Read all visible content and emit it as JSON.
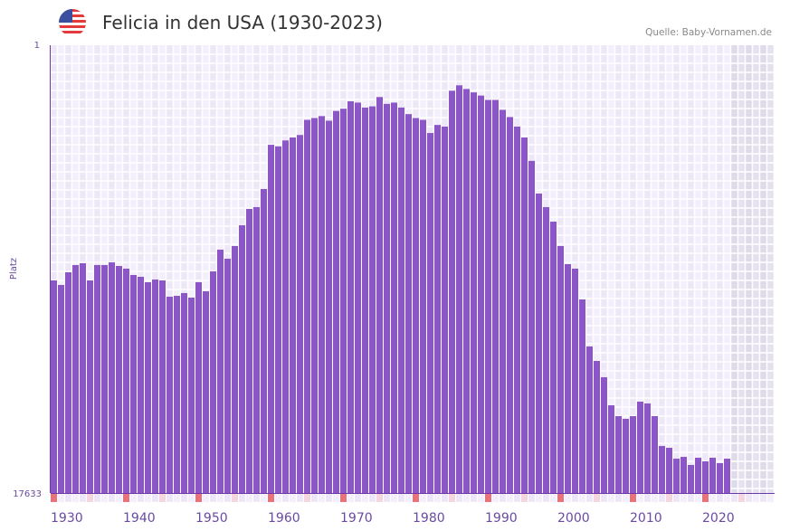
{
  "header": {
    "title": "Felicia in den USA (1930-2023)",
    "source": "Quelle: Baby-Vornamen.de",
    "flag_icon": "us-flag-icon"
  },
  "colors": {
    "bar": "#8c55c8",
    "axis": "#6a3aa8",
    "decade_marker": "#e8737a",
    "half_decade_marker": "#f5d6e0",
    "future_shade": "#e2dfec"
  },
  "chart_data": {
    "type": "bar",
    "title": "Felicia in den USA (1930-2023)",
    "xlabel": "",
    "ylabel": "Platz",
    "y_scale": "log",
    "y_inverted": true,
    "ylim": [
      1,
      17633
    ],
    "y_tick_labels": [
      "1",
      "17633"
    ],
    "xlim": [
      1930,
      2030
    ],
    "x_tick_labels": [
      "1930",
      "1940",
      "1950",
      "1960",
      "1970",
      "1980",
      "1990",
      "2000",
      "2010",
      "2020"
    ],
    "grid": true,
    "x": [
      1930,
      1931,
      1932,
      1933,
      1934,
      1935,
      1936,
      1937,
      1938,
      1939,
      1940,
      1941,
      1942,
      1943,
      1944,
      1945,
      1946,
      1947,
      1948,
      1949,
      1950,
      1951,
      1952,
      1953,
      1954,
      1955,
      1956,
      1957,
      1958,
      1959,
      1960,
      1961,
      1962,
      1963,
      1964,
      1965,
      1966,
      1967,
      1968,
      1969,
      1970,
      1971,
      1972,
      1973,
      1974,
      1975,
      1976,
      1977,
      1978,
      1979,
      1980,
      1981,
      1982,
      1983,
      1984,
      1985,
      1986,
      1987,
      1988,
      1989,
      1990,
      1991,
      1992,
      1993,
      1994,
      1995,
      1996,
      1997,
      1998,
      1999,
      2000,
      2001,
      2002,
      2003,
      2004,
      2005,
      2006,
      2007,
      2008,
      2009,
      2010,
      2011,
      2012,
      2013,
      2014,
      2015,
      2016,
      2017,
      2018,
      2019,
      2020,
      2021,
      2022,
      2023
    ],
    "values": [
      170,
      187.7,
      142.3,
      121.5,
      116.8,
      170,
      121.5,
      121.5,
      114.6,
      124,
      131.5,
      151,
      157.1,
      176.8,
      166.7,
      170,
      242.5,
      237.9,
      224.1,
      247.4,
      176.8,
      215.5,
      139.5,
      86.8,
      105.8,
      80.2,
      51,
      35.7,
      34.3,
      23.1,
      8.8,
      9.1,
      8,
      7.5,
      7.1,
      5.1,
      4.9,
      4.7,
      5.2,
      4.2,
      4,
      3.4,
      3.5,
      3.9,
      3.8,
      3.1,
      3.6,
      3.5,
      3.9,
      4.5,
      4.9,
      5.1,
      6.8,
      5.7,
      5.9,
      2.7,
      2.4,
      2.6,
      2.8,
      3,
      3.3,
      3.3,
      4.1,
      4.8,
      5.9,
      7.5,
      12.5,
      25.5,
      34.3,
      47.1,
      80.2,
      119.1,
      131.5,
      257.5,
      719,
      986,
      1408,
      2597,
      3291,
      3490,
      3291,
      2399,
      2495,
      3291,
      6320,
      6570,
      8330,
      8010,
      9560,
      8160,
      8830,
      8160,
      9190,
      8330
    ]
  }
}
